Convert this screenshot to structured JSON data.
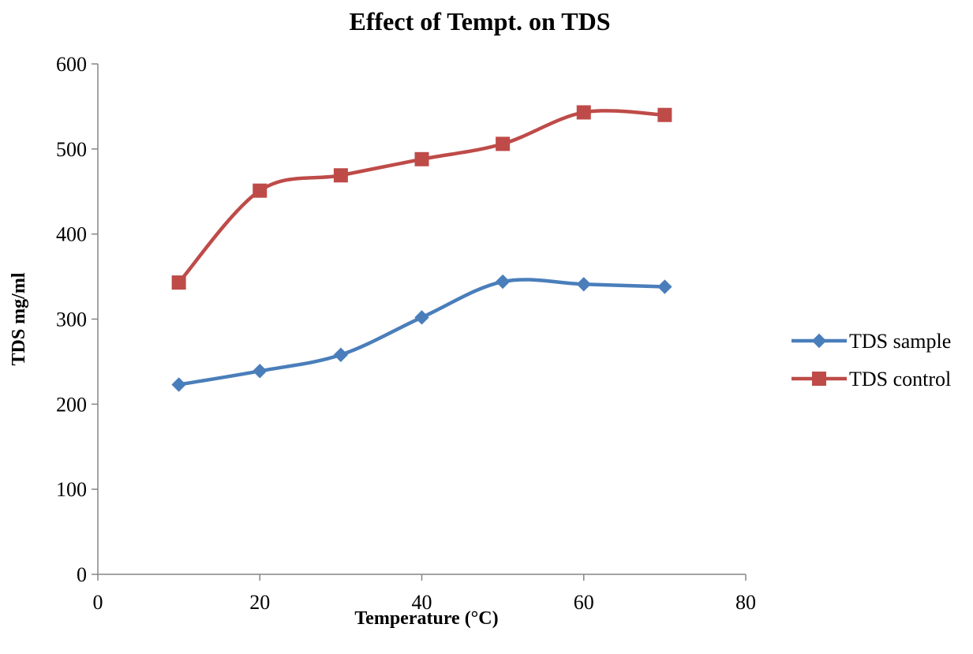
{
  "chart_data": {
    "type": "line",
    "title": "Effect of Tempt. on TDS",
    "xlabel": "Temperature (°C)",
    "ylabel": "TDS mg/ml",
    "xlim": [
      0,
      80
    ],
    "ylim": [
      0,
      600
    ],
    "x_ticks": [
      0,
      20,
      40,
      60,
      80
    ],
    "y_ticks": [
      0,
      100,
      200,
      300,
      400,
      500,
      600
    ],
    "grid": false,
    "smooth": true,
    "legend_position": "right",
    "series": [
      {
        "name": "TDS sample",
        "marker": "diamond",
        "color": "#4a7ebb",
        "x": [
          10,
          20,
          30,
          40,
          50,
          60,
          70
        ],
        "y": [
          223,
          239,
          258,
          302,
          344,
          341,
          338
        ]
      },
      {
        "name": "TDS control",
        "marker": "square",
        "color": "#be4b48",
        "x": [
          10,
          20,
          30,
          40,
          50,
          60,
          70
        ],
        "y": [
          343,
          451,
          469,
          488,
          506,
          543,
          540
        ]
      }
    ]
  }
}
